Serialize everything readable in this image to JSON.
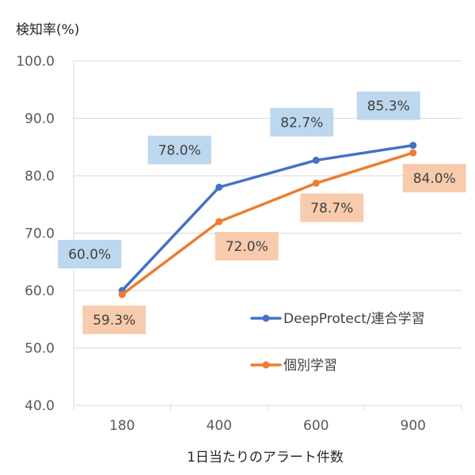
{
  "chart_data": {
    "type": "line",
    "title": "",
    "ylabel": "検知率(%)",
    "xlabel": "1日当たりのアラート件数",
    "categories": [
      "180",
      "400",
      "600",
      "900"
    ],
    "ylim": [
      40,
      100
    ],
    "yticks": [
      40,
      50,
      60,
      70,
      80,
      90,
      100
    ],
    "ytick_labels": [
      "40.0",
      "50.0",
      "60.0",
      "70.0",
      "80.0",
      "90.0",
      "100.0"
    ],
    "grid": true,
    "legend_position": "right",
    "series": [
      {
        "name": "DeepProtect/連合学習",
        "values": [
          60.0,
          78.0,
          82.7,
          85.3
        ],
        "labels": [
          "60.0%",
          "78.0%",
          "82.7%",
          "85.3%"
        ],
        "color": "#4472C4",
        "label_bg": "#BDD7EE"
      },
      {
        "name": "個別学習",
        "values": [
          59.3,
          72.0,
          78.7,
          84.0
        ],
        "labels": [
          "59.3%",
          "72.0%",
          "78.7%",
          "84.0%"
        ],
        "color": "#ED7D31",
        "label_bg": "#F8CBAD"
      }
    ]
  }
}
